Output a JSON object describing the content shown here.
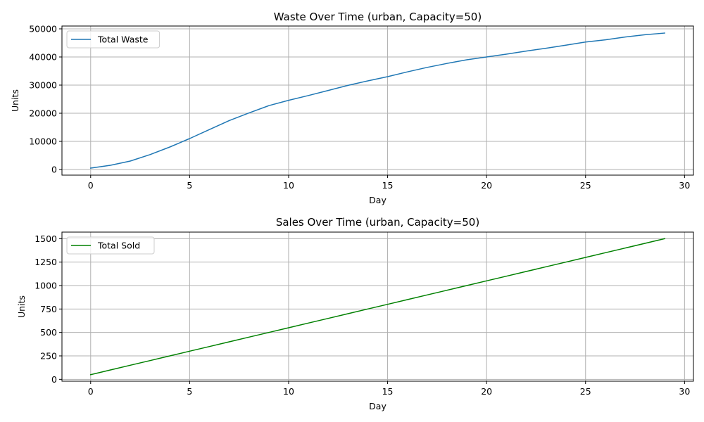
{
  "chart_data": [
    {
      "type": "line",
      "title": "Waste Over Time (urban, Capacity=50)",
      "xlabel": "Day",
      "ylabel": "Units",
      "xlim": [
        -1.45,
        30.45
      ],
      "ylim": [
        -2000,
        51000
      ],
      "xticks": [
        0,
        5,
        10,
        15,
        20,
        25,
        30
      ],
      "xtick_labels": [
        "0",
        "5",
        "10",
        "15",
        "20",
        "25",
        "30"
      ],
      "yticks": [
        0,
        10000,
        20000,
        30000,
        40000,
        50000
      ],
      "ytick_labels": [
        "0",
        "10000",
        "20000",
        "30000",
        "40000",
        "50000"
      ],
      "grid": true,
      "legend_position": "upper-left",
      "series": [
        {
          "name": "Total Waste",
          "color": "#1f77b4",
          "x": [
            0,
            1,
            2,
            3,
            4,
            5,
            6,
            7,
            8,
            9,
            10,
            11,
            12,
            13,
            14,
            15,
            16,
            17,
            18,
            19,
            20,
            21,
            22,
            23,
            24,
            25,
            26,
            27,
            28,
            29
          ],
          "values": [
            500,
            1500,
            3000,
            5300,
            8000,
            11000,
            14200,
            17400,
            20100,
            22700,
            24600,
            26300,
            28100,
            29900,
            31500,
            33000,
            34700,
            36300,
            37700,
            39000,
            40000,
            41000,
            42100,
            43100,
            44200,
            45300,
            46100,
            47100,
            47900,
            48500
          ]
        }
      ]
    },
    {
      "type": "line",
      "title": "Sales Over Time (urban, Capacity=50)",
      "xlabel": "Day",
      "ylabel": "Units",
      "xlim": [
        -1.45,
        30.45
      ],
      "ylim": [
        -20,
        1570
      ],
      "xticks": [
        0,
        5,
        10,
        15,
        20,
        25,
        30
      ],
      "xtick_labels": [
        "0",
        "5",
        "10",
        "15",
        "20",
        "25",
        "30"
      ],
      "yticks": [
        0,
        250,
        500,
        750,
        1000,
        1250,
        1500
      ],
      "ytick_labels": [
        "0",
        "250",
        "500",
        "750",
        "1000",
        "1250",
        "1500"
      ],
      "grid": true,
      "legend_position": "upper-left",
      "series": [
        {
          "name": "Total Sold",
          "color": "#008000",
          "x": [
            0,
            1,
            2,
            3,
            4,
            5,
            6,
            7,
            8,
            9,
            10,
            11,
            12,
            13,
            14,
            15,
            16,
            17,
            18,
            19,
            20,
            21,
            22,
            23,
            24,
            25,
            26,
            27,
            28,
            29
          ],
          "values": [
            50,
            100,
            150,
            200,
            250,
            300,
            350,
            400,
            450,
            500,
            550,
            600,
            650,
            700,
            750,
            800,
            850,
            900,
            950,
            1000,
            1050,
            1100,
            1150,
            1200,
            1250,
            1300,
            1350,
            1400,
            1450,
            1500
          ]
        }
      ]
    }
  ]
}
